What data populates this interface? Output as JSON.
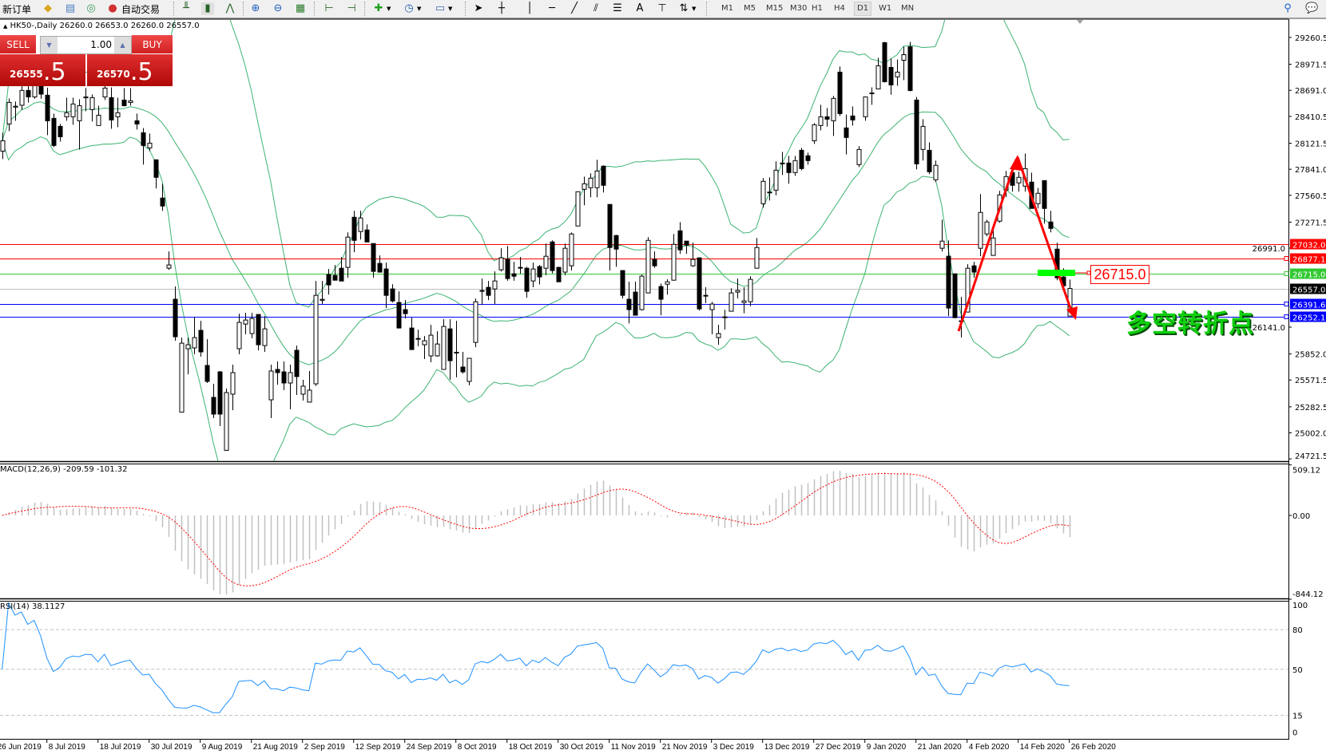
{
  "toolbar": {
    "new_order_label": "新订单",
    "auto_trading_label": "自动交易",
    "icons": [
      "history-center-icon",
      "profiles-icon",
      "signals-icon",
      "auto-trading-icon",
      "bar-chart-icon",
      "candlestick-chart-icon",
      "line-chart-icon",
      "zoom-in-icon",
      "zoom-out-icon",
      "tile-windows-icon",
      "chart-shift-icon",
      "auto-scroll-icon",
      "add-indicator-icon",
      "periods-clock-icon",
      "templates-icon",
      "cursor-icon",
      "crosshair-icon",
      "vertical-line-icon",
      "horizontal-line-icon",
      "trend-line-icon",
      "fibonacci-channel-icon",
      "fibonacci-retracement-icon",
      "text-icon",
      "text-label-icon",
      "arrows-icon",
      "search-icon",
      "chat-icon"
    ],
    "timeframes": [
      "M1",
      "M5",
      "M15",
      "M30",
      "H1",
      "H4",
      "D1",
      "W1",
      "MN"
    ],
    "active_timeframe": "D1"
  },
  "chart": {
    "info": "HK50-,Daily  26260.0 26653.0 26260.0 26557.0",
    "symbol": "HK50-",
    "period": "Daily"
  },
  "one_click": {
    "sell_label": "SELL",
    "buy_label": "BUY",
    "lots": "1.00",
    "sell_price_main": "26555",
    "sell_price_frac": ".5",
    "buy_price_main": "26570",
    "buy_price_frac": ".5",
    "color": "#d02020"
  },
  "annotations": {
    "price_label": "26715.0",
    "text": "多空转折点",
    "arrow_color": "#ff0000",
    "text_color": "#10d010",
    "marker_color": "#00ff00"
  },
  "chart_data": [
    {
      "type": "candlestick",
      "name": "HK50-,Daily",
      "ylim": [
        24697,
        29449
      ],
      "y_ticks": [
        "29260.5",
        "28971.5",
        "28691.0",
        "28410.5",
        "28121.5",
        "27841.0",
        "27560.5",
        "27271.5",
        "26991.0",
        "26141.0",
        "25852.0",
        "25571.5",
        "25282.5",
        "25002.0",
        "24721.5"
      ],
      "x_labels": [
        {
          "bar": -1,
          "label": "26 Jun 2019"
        },
        {
          "bar": 7,
          "label": "8 Jul 2019"
        },
        {
          "bar": 15,
          "label": "18 Jul 2019"
        },
        {
          "bar": 23,
          "label": "30 Jul 2019"
        },
        {
          "bar": 31,
          "label": "9 Aug 2019"
        },
        {
          "bar": 39,
          "label": "21 Aug 2019"
        },
        {
          "bar": 47,
          "label": "2 Sep 2019"
        },
        {
          "bar": 55,
          "label": "12 Sep 2019"
        },
        {
          "bar": 63,
          "label": "24 Sep 2019"
        },
        {
          "bar": 71,
          "label": "8 Oct 2019"
        },
        {
          "bar": 79,
          "label": "18 Oct 2019"
        },
        {
          "bar": 87,
          "label": "30 Oct 2019"
        },
        {
          "bar": 95,
          "label": "11 Nov 2019"
        },
        {
          "bar": 103,
          "label": "21 Nov 2019"
        },
        {
          "bar": 111,
          "label": "3 Dec 2019"
        },
        {
          "bar": 119,
          "label": "13 Dec 2019"
        },
        {
          "bar": 127,
          "label": "27 Dec 2019"
        },
        {
          "bar": 135,
          "label": "9 Jan 2020"
        },
        {
          "bar": 143,
          "label": "21 Jan 2020"
        },
        {
          "bar": 151,
          "label": "4 Feb 2020"
        },
        {
          "bar": 159,
          "label": "14 Feb 2020"
        },
        {
          "bar": 167,
          "label": "26 Feb 2020"
        }
      ],
      "ohlc_fields": [
        "open",
        "high",
        "low",
        "close"
      ],
      "ohlc": [
        [
          28036,
          28234,
          27951,
          28148
        ],
        [
          28329,
          28604,
          28251,
          28561
        ],
        [
          28510,
          28570,
          28363,
          28520
        ],
        [
          28530,
          28740,
          28480,
          28690
        ],
        [
          28690,
          28800,
          28560,
          28620
        ],
        [
          28620,
          28850,
          28600,
          28780
        ],
        [
          28780,
          28870,
          28600,
          28650
        ],
        [
          28638,
          28720,
          28208,
          28363
        ],
        [
          28389,
          28440,
          28080,
          28097
        ],
        [
          28303,
          28330,
          28140,
          28191
        ],
        [
          28406,
          28612,
          28363,
          28450
        ],
        [
          28406,
          28612,
          28320,
          28544
        ],
        [
          28363,
          28595,
          28054,
          28526
        ],
        [
          28610,
          28715,
          28466,
          28620
        ],
        [
          28483,
          28647,
          28355,
          28612
        ],
        [
          28312,
          28526,
          28312,
          28423
        ],
        [
          28620,
          28800,
          28586,
          28715
        ],
        [
          28612,
          28723,
          28277,
          28372
        ],
        [
          28406,
          28612,
          28294,
          28450
        ],
        [
          28586,
          28715,
          28518,
          28526
        ],
        [
          28560,
          28715,
          28526,
          28578
        ],
        [
          28363,
          28440,
          28268,
          28329
        ],
        [
          28234,
          28285,
          27891,
          28097
        ],
        [
          28071,
          28226,
          28036,
          28122
        ],
        [
          27943,
          27943,
          27634,
          27754
        ],
        [
          27531,
          27685,
          27393,
          27445
        ],
        [
          26776,
          26956,
          26757,
          26810
        ],
        [
          26441,
          26579,
          25994,
          26037
        ],
        [
          25225,
          26028,
          25225,
          25968
        ],
        [
          25908,
          26028,
          25633,
          25951
        ],
        [
          25917,
          26251,
          25848,
          26028
        ],
        [
          26106,
          26208,
          25823,
          25874
        ],
        [
          25728,
          26011,
          25539,
          25556
        ],
        [
          25384,
          25530,
          25161,
          25204
        ],
        [
          25659,
          25668,
          25075,
          25204
        ],
        [
          24814,
          25479,
          24814,
          25436
        ],
        [
          25419,
          25737,
          25246,
          25651
        ],
        [
          25908,
          26286,
          25848,
          26192
        ],
        [
          26174,
          26295,
          26063,
          26217
        ],
        [
          26071,
          26295,
          26020,
          26234
        ],
        [
          26277,
          26277,
          25890,
          25951
        ],
        [
          25942,
          26260,
          25874,
          26122
        ],
        [
          25358,
          25737,
          25161,
          25668
        ],
        [
          25685,
          25771,
          25521,
          25651
        ],
        [
          25659,
          25771,
          25462,
          25539
        ],
        [
          25539,
          25737,
          25256,
          25651
        ],
        [
          25891,
          25942,
          25410,
          25608
        ],
        [
          25419,
          25573,
          25350,
          25505
        ],
        [
          25333,
          25668,
          25333,
          25462
        ],
        [
          25530,
          26638,
          25508,
          26483
        ],
        [
          26430,
          26638,
          26390,
          26440
        ],
        [
          26707,
          26767,
          26491,
          26595
        ],
        [
          26698,
          26810,
          26646,
          26646
        ],
        [
          26775,
          26896,
          26637,
          26637
        ],
        [
          26784,
          27161,
          26672,
          27110
        ],
        [
          27324,
          27393,
          26947,
          27075
        ],
        [
          27170,
          27393,
          27084,
          27316
        ],
        [
          27187,
          27247,
          27084,
          27058
        ],
        [
          27041,
          27041,
          26672,
          26741
        ],
        [
          26827,
          26913,
          26733,
          26733
        ],
        [
          26767,
          26836,
          26346,
          26483
        ],
        [
          26552,
          26603,
          26406,
          26423
        ],
        [
          26406,
          26526,
          26131,
          26131
        ],
        [
          26329,
          26432,
          26234,
          26286
        ],
        [
          26131,
          26243,
          25899,
          25899
        ],
        [
          26010,
          26114,
          25934,
          26019
        ],
        [
          25951,
          26045,
          25797,
          25994
        ],
        [
          25831,
          26165,
          25763,
          26054
        ],
        [
          25831,
          26097,
          25822,
          25959
        ],
        [
          25685,
          26226,
          25685,
          26148
        ],
        [
          26122,
          26226,
          25573,
          25779
        ],
        [
          25870,
          26208,
          25600,
          25865
        ],
        [
          25711,
          25874,
          25640,
          25659
        ],
        [
          25556,
          25805,
          25513,
          25805
        ],
        [
          25976,
          26449,
          25925,
          26414
        ],
        [
          26530,
          26664,
          26380,
          26535
        ],
        [
          26569,
          26638,
          26432,
          26483
        ],
        [
          26552,
          26741,
          26389,
          26638
        ],
        [
          26758,
          26990,
          26740,
          26887
        ],
        [
          26870,
          27015,
          26640,
          26664
        ],
        [
          26715,
          26844,
          26640,
          26689
        ],
        [
          26780,
          26896,
          26715,
          26784
        ],
        [
          26775,
          26790,
          26458,
          26526
        ],
        [
          26638,
          26836,
          26570,
          26767
        ],
        [
          26793,
          26810,
          26600,
          26681
        ],
        [
          26775,
          27041,
          26700,
          26904
        ],
        [
          27058,
          27075,
          26720,
          26750
        ],
        [
          26784,
          26790,
          26629,
          26629
        ],
        [
          26733,
          27041,
          26700,
          26990
        ],
        [
          26801,
          27161,
          26750,
          27144
        ],
        [
          27230,
          27599,
          27230,
          27599
        ],
        [
          27625,
          27762,
          27453,
          27685
        ],
        [
          27642,
          27796,
          27539,
          27745
        ],
        [
          27642,
          27943,
          27539,
          27822
        ],
        [
          27874,
          27883,
          27591,
          27668
        ],
        [
          27462,
          27462,
          26750,
          26998
        ],
        [
          27127,
          27135,
          26790,
          26981
        ],
        [
          26750,
          26750,
          26449,
          26483
        ],
        [
          26441,
          26630,
          26182,
          26329
        ],
        [
          26518,
          26630,
          26269,
          26269
        ],
        [
          26329,
          26707,
          26320,
          26690
        ],
        [
          26509,
          27110,
          26509,
          27075
        ],
        [
          26870,
          26956,
          26780,
          26801
        ],
        [
          26578,
          26610,
          26269,
          26441
        ],
        [
          26603,
          26655,
          26490,
          26629
        ],
        [
          26646,
          27144,
          26646,
          27032
        ],
        [
          27178,
          27272,
          26930,
          26973
        ],
        [
          27067,
          27067,
          26930,
          27024
        ],
        [
          26801,
          27050,
          26790,
          26870
        ],
        [
          26887,
          26887,
          26320,
          26337
        ],
        [
          26480,
          26570,
          26400,
          26483
        ],
        [
          26329,
          26414,
          26063,
          26389
        ],
        [
          26028,
          26166,
          25950,
          26071
        ],
        [
          26251,
          26329,
          26114,
          26243
        ],
        [
          26312,
          26560,
          26312,
          26509
        ],
        [
          26518,
          26664,
          26450,
          26535
        ],
        [
          26406,
          26570,
          26290,
          26423
        ],
        [
          26414,
          26690,
          26366,
          26655
        ],
        [
          26775,
          27101,
          26775,
          26998
        ],
        [
          27470,
          27745,
          27427,
          27711
        ],
        [
          27590,
          27754,
          27505,
          27595
        ],
        [
          27616,
          27926,
          27560,
          27831
        ],
        [
          27905,
          28028,
          27780,
          27908
        ],
        [
          27908,
          27985,
          27685,
          27805
        ],
        [
          27805,
          27985,
          27770,
          27934
        ],
        [
          28045,
          28071,
          27830,
          27848
        ],
        [
          27986,
          28020,
          27890,
          27934
        ],
        [
          28148,
          28337,
          28114,
          28320
        ],
        [
          28312,
          28535,
          28260,
          28406
        ],
        [
          28406,
          28500,
          28300,
          28380
        ],
        [
          28363,
          28630,
          28200,
          28604
        ],
        [
          28887,
          28947,
          28415,
          28440
        ],
        [
          28286,
          28430,
          28000,
          28183
        ],
        [
          28415,
          28518,
          28310,
          28372
        ],
        [
          27891,
          28090,
          27865,
          28054
        ],
        [
          28406,
          28620,
          28363,
          28620
        ],
        [
          28660,
          28723,
          28535,
          28663
        ],
        [
          28706,
          29041,
          28706,
          28955
        ],
        [
          29204,
          29213,
          28775,
          28784
        ],
        [
          28938,
          29032,
          28643,
          28749
        ],
        [
          28836,
          29024,
          28740,
          28887
        ],
        [
          29015,
          29161,
          28800,
          29075
        ],
        [
          29161,
          29213,
          28680,
          28689
        ],
        [
          28586,
          28620,
          27840,
          27899
        ],
        [
          28054,
          28380,
          27934,
          28303
        ],
        [
          28045,
          28131,
          27788,
          27814
        ],
        [
          27728,
          27934,
          27702,
          27883
        ],
        [
          26990,
          27298,
          26955,
          27067
        ],
        [
          26904,
          27075,
          26260,
          26346
        ],
        [
          26715,
          26715,
          26235,
          26243
        ],
        [
          26200,
          26466,
          26029,
          26209
        ],
        [
          26303,
          26818,
          26303,
          26775
        ],
        [
          26801,
          26844,
          26672,
          26733
        ],
        [
          26990,
          27574,
          26904,
          27376
        ],
        [
          27144,
          27298,
          27118,
          27273
        ],
        [
          26913,
          27248,
          26913,
          27101
        ],
        [
          27282,
          27608,
          27265,
          27565
        ],
        [
          27616,
          27823,
          27540,
          27762
        ],
        [
          27805,
          27883,
          27600,
          27668
        ],
        [
          27694,
          27814,
          27600,
          27754
        ],
        [
          27659,
          28011,
          27600,
          27848
        ],
        [
          27702,
          27805,
          27419,
          27419
        ],
        [
          27470,
          27640,
          27419,
          27582
        ],
        [
          27719,
          27719,
          27256,
          27419
        ],
        [
          27273,
          27393,
          27161,
          27204
        ],
        [
          26981,
          27050,
          26646,
          26672
        ],
        [
          26681,
          26775,
          26560,
          26586
        ],
        [
          26260,
          26653,
          26260,
          26557
        ]
      ],
      "overlay": {
        "indicator": "Bollinger Bands",
        "color": "#3cb371"
      },
      "horizontal_lines": [
        {
          "price": 27032.0,
          "label": "27032.0",
          "color": "#ff0000"
        },
        {
          "price": 26877.1,
          "label": "26877.1",
          "color": "#ff0000"
        },
        {
          "price": 26715.0,
          "label": "26715.0",
          "color": "#32c832"
        },
        {
          "price": 26557.0,
          "label": "26557.0",
          "color": "#c0c0c0",
          "label_bg": "#000000"
        },
        {
          "price": 26391.6,
          "label": "26391.6",
          "color": "#0000ff"
        },
        {
          "price": 26252.1,
          "label": "26252.1",
          "color": "#0000ff"
        }
      ]
    },
    {
      "type": "bar",
      "name": "MACD",
      "title": "MACD(12,26,9) -209.59 -101.32",
      "ylim": [
        -844.12,
        509.12
      ],
      "y_ticks": [
        "509.12",
        "0.00",
        "-844.12"
      ],
      "histogram_color": "#c0c0c0",
      "signal_color": "#ff0000"
    },
    {
      "type": "line",
      "name": "RSI",
      "title": "RSI(14) 38.1127",
      "ylim": [
        0,
        100
      ],
      "y_ticks": [
        "100",
        "80",
        "50",
        "15",
        "0"
      ],
      "levels": [
        80,
        50,
        15
      ],
      "color": "#1e90ff"
    }
  ]
}
